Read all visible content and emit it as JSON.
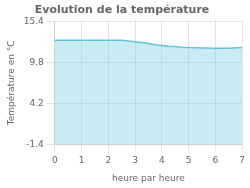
{
  "chart_data": {
    "type": "area",
    "title": "Evolution de la température",
    "x_label": "heure par heure",
    "y_label": "Température en °C",
    "x": [
      0,
      0.5,
      1,
      1.5,
      2,
      2.5,
      3,
      3.25,
      3.5,
      3.75,
      4,
      4.25,
      4.5,
      4.75,
      5,
      5.5,
      6,
      6.5,
      7
    ],
    "values": [
      12.8,
      12.8,
      12.8,
      12.8,
      12.8,
      12.8,
      12.6,
      12.5,
      12.35,
      12.2,
      12.1,
      12.0,
      11.95,
      11.85,
      11.8,
      11.75,
      11.72,
      11.72,
      11.8
    ],
    "color": "#63c5dc",
    "xlim": [
      0,
      7
    ],
    "xticks": [
      0,
      1,
      2,
      3,
      4,
      5,
      6,
      7
    ],
    "ylim": [
      -1.4,
      15.4
    ],
    "yticks": [
      -1.4,
      4.2,
      9.8,
      15.4
    ],
    "grid": true
  }
}
